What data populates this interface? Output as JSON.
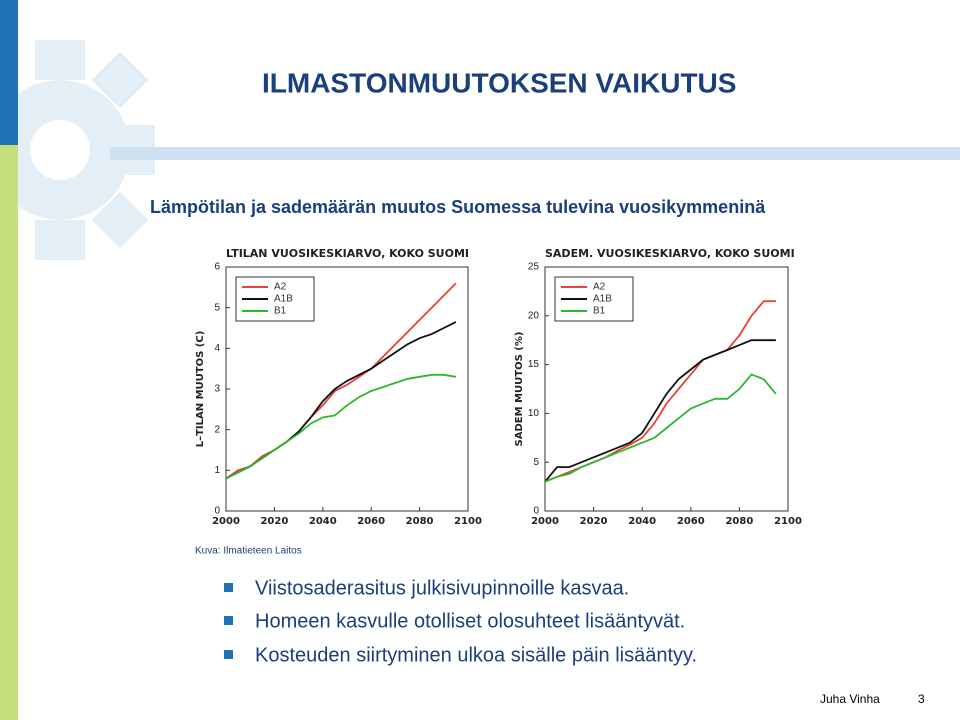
{
  "title": "ILMASTONMUUTOKSEN VAIKUTUS",
  "subtitle": "Lämpötilan ja sademäärän muutos Suomessa tulevina vuosikymmeninä",
  "source": "Kuva: Ilmatieteen Laitos",
  "bullets": [
    "Viistosaderasitus julkisivupinnoille kasvaa.",
    "Homeen kasvulle otolliset olosuhteet lisääntyvät.",
    "Kosteuden siirtyminen ulkoa sisälle päin lisääntyy."
  ],
  "footer": {
    "author": "Juha Vinha",
    "page": "3"
  },
  "chart_data": [
    {
      "type": "line",
      "title": "LTILAN VUOSIKESKIARVO, KOKO SUOMI",
      "y_label": "L–TILAN MUUTOS (C)",
      "x": [
        2000,
        2005,
        2010,
        2015,
        2020,
        2025,
        2030,
        2035,
        2040,
        2045,
        2050,
        2055,
        2060,
        2065,
        2070,
        2075,
        2080,
        2085,
        2090,
        2095
      ],
      "series": [
        {
          "name": "A2",
          "color": "#e8403a",
          "values": [
            0.8,
            1.0,
            1.1,
            1.35,
            1.5,
            1.7,
            1.95,
            2.3,
            2.6,
            2.95,
            3.1,
            3.3,
            3.5,
            3.8,
            4.1,
            4.4,
            4.7,
            5.0,
            5.3,
            5.6
          ]
        },
        {
          "name": "A1B",
          "color": "#111111",
          "values": [
            0.8,
            0.95,
            1.1,
            1.3,
            1.5,
            1.7,
            1.95,
            2.3,
            2.7,
            3.0,
            3.2,
            3.35,
            3.5,
            3.7,
            3.9,
            4.1,
            4.25,
            4.35,
            4.5,
            4.65
          ]
        },
        {
          "name": "B1",
          "color": "#2db82d",
          "values": [
            0.8,
            0.95,
            1.1,
            1.3,
            1.5,
            1.7,
            1.9,
            2.15,
            2.3,
            2.35,
            2.6,
            2.8,
            2.95,
            3.05,
            3.15,
            3.25,
            3.3,
            3.35,
            3.35,
            3.3
          ]
        }
      ],
      "xlim": [
        2000,
        2100
      ],
      "ylim": [
        0,
        6
      ],
      "xticks": [
        2000,
        2020,
        2040,
        2060,
        2080,
        2100
      ],
      "yticks": [
        0,
        1,
        2,
        3,
        4,
        5,
        6
      ],
      "legend": "upper left"
    },
    {
      "type": "line",
      "title": "SADEM. VUOSIKESKIARVO, KOKO SUOMI",
      "y_label": "SADEM MUUTOS (%)",
      "x": [
        2000,
        2005,
        2010,
        2015,
        2020,
        2025,
        2030,
        2035,
        2040,
        2045,
        2050,
        2055,
        2060,
        2065,
        2070,
        2075,
        2080,
        2085,
        2090,
        2095
      ],
      "series": [
        {
          "name": "A2",
          "color": "#e8403a",
          "values": [
            3,
            3.5,
            4,
            4.5,
            5,
            5.5,
            6.2,
            6.8,
            7.5,
            9,
            11,
            12.5,
            14,
            15.5,
            16,
            16.5,
            18,
            20,
            21.5,
            21.5
          ]
        },
        {
          "name": "A1B",
          "color": "#111111",
          "values": [
            3,
            4.5,
            4.5,
            5,
            5.5,
            6,
            6.5,
            7,
            8,
            10,
            12,
            13.5,
            14.5,
            15.5,
            16,
            16.5,
            17,
            17.5,
            17.5,
            17.5
          ]
        },
        {
          "name": "B1",
          "color": "#2db82d",
          "values": [
            3,
            3.5,
            3.8,
            4.5,
            5,
            5.5,
            6,
            6.5,
            7,
            7.5,
            8.5,
            9.5,
            10.5,
            11,
            11.5,
            11.5,
            12.5,
            14,
            13.5,
            12
          ]
        }
      ],
      "xlim": [
        2000,
        2100
      ],
      "ylim": [
        0,
        25
      ],
      "xticks": [
        2000,
        2020,
        2040,
        2060,
        2080,
        2100
      ],
      "yticks": [
        0,
        5,
        10,
        15,
        20,
        25
      ],
      "legend": "upper left"
    }
  ]
}
